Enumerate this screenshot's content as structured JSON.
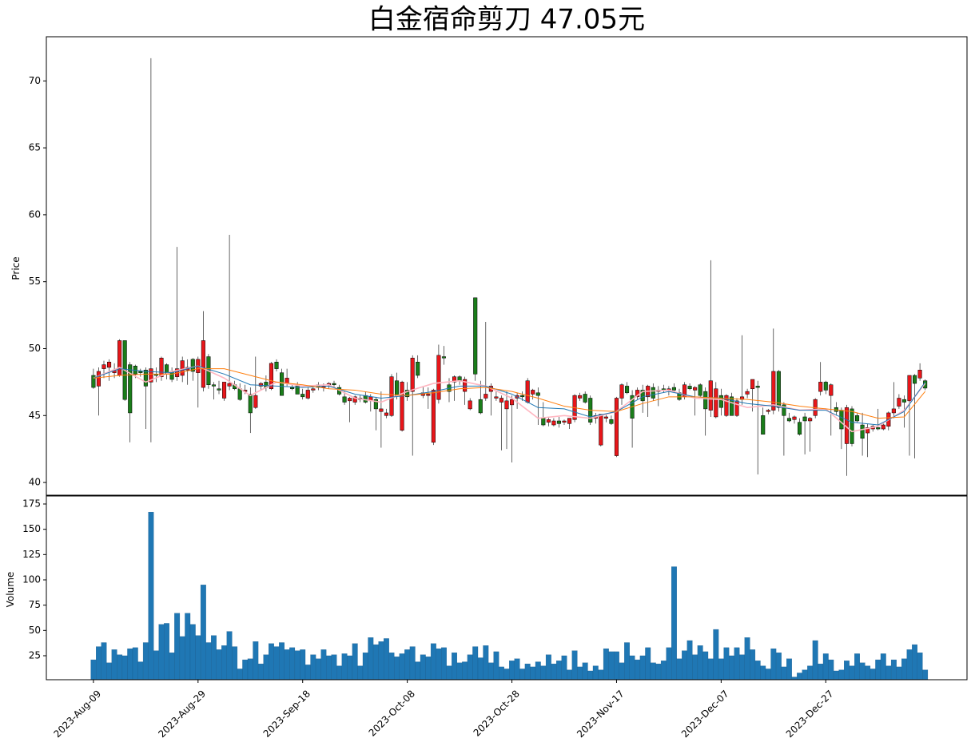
{
  "chart_data": {
    "type": "candlestick",
    "title": "白金宿命剪刀  47.05元",
    "price_label": "Price",
    "volume_label": "Volume",
    "up_color": "#e8161a",
    "down_color": "#1a7d1a",
    "volume_color": "#1f77b4",
    "x": [
      "2023-Aug-09",
      "2023-Aug-10",
      "2023-Aug-11",
      "2023-Aug-12",
      "2023-Aug-13",
      "2023-Aug-14",
      "2023-Aug-15",
      "2023-Aug-16",
      "2023-Aug-17",
      "2023-Aug-18",
      "2023-Aug-19",
      "2023-Aug-20",
      "2023-Aug-21",
      "2023-Aug-22",
      "2023-Aug-23",
      "2023-Aug-24",
      "2023-Aug-25",
      "2023-Aug-26",
      "2023-Aug-27",
      "2023-Aug-28",
      "2023-Aug-29",
      "2023-Aug-30",
      "2023-Aug-31",
      "2023-Sep-01",
      "2023-Sep-02",
      "2023-Sep-03",
      "2023-Sep-04",
      "2023-Sep-05",
      "2023-Sep-06",
      "2023-Sep-07",
      "2023-Sep-08",
      "2023-Sep-09",
      "2023-Sep-10",
      "2023-Sep-11",
      "2023-Sep-12",
      "2023-Sep-13",
      "2023-Sep-14",
      "2023-Sep-15",
      "2023-Sep-16",
      "2023-Sep-17",
      "2023-Sep-18",
      "2023-Sep-19",
      "2023-Sep-20",
      "2023-Sep-21",
      "2023-Sep-22",
      "2023-Sep-23",
      "2023-Sep-24",
      "2023-Sep-25",
      "2023-Sep-26",
      "2023-Sep-27",
      "2023-Sep-28",
      "2023-Sep-29",
      "2023-Sep-30",
      "2023-Oct-01",
      "2023-Oct-02",
      "2023-Oct-03",
      "2023-Oct-04",
      "2023-Oct-05",
      "2023-Oct-06",
      "2023-Oct-07",
      "2023-Oct-08",
      "2023-Oct-09",
      "2023-Oct-10",
      "2023-Oct-11",
      "2023-Oct-12",
      "2023-Oct-13",
      "2023-Oct-14",
      "2023-Oct-15",
      "2023-Oct-16",
      "2023-Oct-17",
      "2023-Oct-18",
      "2023-Oct-19",
      "2023-Oct-20",
      "2023-Oct-21",
      "2023-Oct-22",
      "2023-Oct-23",
      "2023-Oct-24",
      "2023-Oct-25",
      "2023-Oct-26",
      "2023-Oct-27",
      "2023-Oct-28",
      "2023-Oct-29",
      "2023-Oct-30",
      "2023-Oct-31",
      "2023-Nov-01",
      "2023-Nov-02",
      "2023-Nov-03",
      "2023-Nov-04",
      "2023-Nov-05",
      "2023-Nov-06",
      "2023-Nov-07",
      "2023-Nov-08",
      "2023-Nov-09",
      "2023-Nov-10",
      "2023-Nov-11",
      "2023-Nov-12",
      "2023-Nov-13",
      "2023-Nov-14",
      "2023-Nov-15",
      "2023-Nov-16",
      "2023-Nov-17",
      "2023-Nov-18",
      "2023-Nov-19",
      "2023-Nov-20",
      "2023-Nov-21",
      "2023-Nov-22",
      "2023-Nov-23",
      "2023-Nov-24",
      "2023-Nov-25",
      "2023-Nov-26",
      "2023-Nov-27",
      "2023-Nov-28",
      "2023-Nov-29",
      "2023-Nov-30",
      "2023-Dec-01",
      "2023-Dec-02",
      "2023-Dec-03",
      "2023-Dec-04",
      "2023-Dec-05",
      "2023-Dec-06",
      "2023-Dec-07",
      "2023-Dec-08",
      "2023-Dec-09",
      "2023-Dec-10",
      "2023-Dec-11",
      "2023-Dec-12",
      "2023-Dec-13",
      "2023-Dec-14",
      "2023-Dec-15",
      "2023-Dec-16",
      "2023-Dec-17",
      "2023-Dec-18",
      "2023-Dec-19",
      "2023-Dec-20",
      "2023-Dec-21",
      "2023-Dec-22",
      "2023-Dec-23",
      "2023-Dec-24",
      "2023-Dec-25",
      "2023-Dec-26",
      "2023-Dec-27",
      "2023-Dec-28",
      "2023-Dec-29",
      "2023-Dec-30",
      "2023-Dec-31",
      "2024-Jan-01",
      "2024-Jan-02",
      "2024-Jan-03",
      "2024-Jan-04",
      "2024-Jan-05",
      "2024-Jan-06",
      "2024-Jan-07",
      "2024-Jan-08",
      "2024-Jan-09",
      "2024-Jan-10",
      "2024-Jan-11",
      "2024-Jan-12",
      "2024-Jan-13",
      "2024-Jan-14",
      "2024-Jan-15"
    ],
    "ohlc": [
      [
        48.0,
        48.5,
        47.0,
        47.1
      ],
      [
        47.2,
        48.6,
        45.0,
        48.3
      ],
      [
        48.5,
        49.1,
        47.8,
        48.8
      ],
      [
        48.6,
        49.2,
        47.6,
        49.0
      ],
      [
        48.2,
        48.9,
        47.8,
        48.4
      ],
      [
        48.0,
        50.7,
        47.9,
        50.6
      ],
      [
        50.6,
        50.6,
        46.1,
        46.2
      ],
      [
        48.8,
        49.0,
        43.0,
        45.2
      ],
      [
        48.7,
        48.8,
        47.8,
        48.1
      ],
      [
        48.3,
        48.5,
        47.9,
        48.2
      ],
      [
        48.4,
        48.6,
        44.0,
        47.2
      ],
      [
        47.5,
        71.7,
        43.0,
        48.5
      ],
      [
        48.1,
        48.6,
        47.5,
        48.0
      ],
      [
        47.9,
        49.4,
        47.6,
        49.3
      ],
      [
        48.8,
        48.9,
        47.7,
        48.1
      ],
      [
        48.3,
        48.6,
        47.5,
        47.7
      ],
      [
        47.9,
        57.6,
        47.6,
        48.5
      ],
      [
        48.0,
        49.4,
        47.5,
        49.1
      ],
      [
        48.4,
        49.2,
        47.3,
        48.6
      ],
      [
        49.2,
        49.3,
        47.6,
        48.3
      ],
      [
        48.2,
        49.4,
        45.6,
        49.2
      ],
      [
        47.1,
        52.8,
        46.8,
        50.6
      ],
      [
        49.4,
        49.6,
        47.0,
        47.3
      ],
      [
        47.3,
        47.5,
        46.2,
        47.2
      ],
      [
        47.0,
        47.6,
        46.6,
        46.9
      ],
      [
        46.3,
        47.5,
        46.1,
        47.5
      ],
      [
        47.2,
        58.5,
        46.9,
        47.4
      ],
      [
        47.3,
        47.6,
        46.9,
        47.0
      ],
      [
        47.0,
        47.4,
        46.1,
        46.2
      ],
      [
        46.8,
        47.3,
        46.6,
        46.9
      ],
      [
        46.6,
        47.1,
        43.7,
        45.2
      ],
      [
        45.6,
        49.4,
        45.5,
        46.5
      ],
      [
        47.2,
        47.5,
        46.9,
        47.4
      ],
      [
        47.5,
        48.0,
        46.8,
        47.1
      ],
      [
        47.0,
        49.0,
        46.9,
        48.9
      ],
      [
        49.0,
        49.2,
        48.3,
        48.5
      ],
      [
        48.2,
        48.5,
        46.5,
        46.5
      ],
      [
        47.4,
        48.5,
        47.2,
        47.8
      ],
      [
        47.1,
        47.4,
        46.9,
        47.0
      ],
      [
        47.2,
        47.5,
        46.6,
        46.6
      ],
      [
        46.6,
        47.0,
        46.2,
        46.4
      ],
      [
        46.3,
        47.1,
        46.2,
        46.9
      ],
      [
        46.9,
        47.2,
        46.7,
        47.0
      ],
      [
        47.3,
        47.5,
        46.9,
        47.1
      ],
      [
        47.1,
        47.4,
        46.8,
        47.2
      ],
      [
        47.3,
        47.5,
        47.0,
        47.4
      ],
      [
        47.4,
        47.6,
        47.1,
        47.3
      ],
      [
        47.1,
        47.3,
        46.5,
        46.6
      ],
      [
        46.4,
        46.8,
        45.8,
        46.0
      ],
      [
        46.1,
        46.4,
        44.5,
        46.3
      ],
      [
        46.0,
        46.5,
        45.8,
        46.4
      ],
      [
        46.2,
        46.5,
        46.0,
        46.3
      ],
      [
        46.5,
        46.8,
        45.9,
        46.0
      ],
      [
        46.1,
        46.6,
        45.3,
        46.4
      ],
      [
        46.2,
        46.4,
        43.9,
        45.5
      ],
      [
        45.3,
        46.8,
        42.6,
        45.5
      ],
      [
        45.0,
        45.5,
        44.8,
        45.2
      ],
      [
        45.0,
        48.1,
        44.9,
        47.9
      ],
      [
        47.6,
        48.2,
        46.2,
        46.5
      ],
      [
        43.9,
        47.6,
        43.8,
        47.5
      ],
      [
        46.9,
        47.5,
        46.1,
        46.4
      ],
      [
        46.8,
        49.5,
        42.0,
        49.3
      ],
      [
        49.0,
        49.5,
        47.8,
        48.0
      ],
      [
        46.5,
        47.2,
        46.3,
        46.7
      ],
      [
        46.5,
        47.1,
        45.5,
        46.6
      ],
      [
        43.0,
        47.0,
        42.8,
        46.9
      ],
      [
        46.2,
        50.3,
        45.9,
        49.5
      ],
      [
        49.4,
        50.2,
        48.8,
        49.3
      ],
      [
        47.3,
        47.8,
        46.0,
        46.8
      ],
      [
        47.5,
        48.0,
        46.1,
        47.9
      ],
      [
        47.9,
        48.0,
        47.3,
        47.6
      ],
      [
        46.8,
        47.9,
        45.8,
        47.7
      ],
      [
        45.5,
        46.3,
        45.4,
        46.1
      ],
      [
        53.8,
        53.8,
        47.6,
        48.1
      ],
      [
        46.2,
        47.6,
        45.1,
        45.2
      ],
      [
        46.3,
        52.0,
        46.1,
        46.6
      ],
      [
        46.8,
        47.4,
        45.0,
        47.2
      ],
      [
        46.3,
        46.8,
        46.1,
        46.4
      ],
      [
        46.0,
        46.5,
        42.4,
        46.3
      ],
      [
        45.5,
        46.8,
        42.5,
        46.1
      ],
      [
        45.8,
        46.5,
        41.5,
        46.2
      ],
      [
        46.3,
        46.7,
        45.5,
        46.5
      ],
      [
        46.5,
        46.8,
        46.1,
        46.4
      ],
      [
        46.0,
        47.8,
        45.9,
        47.6
      ],
      [
        46.6,
        47.0,
        46.2,
        46.9
      ],
      [
        46.7,
        47.1,
        44.3,
        46.5
      ],
      [
        44.8,
        46.0,
        44.2,
        44.3
      ],
      [
        44.5,
        44.9,
        44.2,
        44.7
      ],
      [
        44.3,
        44.8,
        44.2,
        44.6
      ],
      [
        44.6,
        44.9,
        44.1,
        44.4
      ],
      [
        44.5,
        44.7,
        44.3,
        44.6
      ],
      [
        44.4,
        44.8,
        44.0,
        44.8
      ],
      [
        44.7,
        46.6,
        44.5,
        46.5
      ],
      [
        46.3,
        46.7,
        46.1,
        46.5
      ],
      [
        46.6,
        46.8,
        45.9,
        46.0
      ],
      [
        46.3,
        46.5,
        44.3,
        44.5
      ],
      [
        44.8,
        45.2,
        44.4,
        45.0
      ],
      [
        42.8,
        45.0,
        42.7,
        45.1
      ],
      [
        44.8,
        45.1,
        44.5,
        44.9
      ],
      [
        44.7,
        45.0,
        44.3,
        44.4
      ],
      [
        42.0,
        46.4,
        41.9,
        46.3
      ],
      [
        46.3,
        47.4,
        45.8,
        47.3
      ],
      [
        47.2,
        47.5,
        46.6,
        46.7
      ],
      [
        46.5,
        46.9,
        42.6,
        44.8
      ],
      [
        46.4,
        47.1,
        46.2,
        46.9
      ],
      [
        46.9,
        47.3,
        45.2,
        46.1
      ],
      [
        46.4,
        47.3,
        44.9,
        47.2
      ],
      [
        47.1,
        47.4,
        46.1,
        46.3
      ],
      [
        46.8,
        47.2,
        45.7,
        46.9
      ],
      [
        47.0,
        47.3,
        46.7,
        46.9
      ],
      [
        46.9,
        47.2,
        46.5,
        47.0
      ],
      [
        47.1,
        47.4,
        46.8,
        46.9
      ],
      [
        46.7,
        47.0,
        46.1,
        46.2
      ],
      [
        46.4,
        47.5,
        46.2,
        47.3
      ],
      [
        47.2,
        47.4,
        46.9,
        47.0
      ],
      [
        46.9,
        47.2,
        45.0,
        47.1
      ],
      [
        47.3,
        47.4,
        46.4,
        46.5
      ],
      [
        46.8,
        47.1,
        43.5,
        45.5
      ],
      [
        45.4,
        56.6,
        44.9,
        47.6
      ],
      [
        44.9,
        47.5,
        44.8,
        47.0
      ],
      [
        46.5,
        47.0,
        45.0,
        45.6
      ],
      [
        45.0,
        46.6,
        44.9,
        46.5
      ],
      [
        46.4,
        46.7,
        45.0,
        45.0
      ],
      [
        45.0,
        46.3,
        44.9,
        46.1
      ],
      [
        46.2,
        51.0,
        45.8,
        46.4
      ],
      [
        46.6,
        47.0,
        46.3,
        46.8
      ],
      [
        47.0,
        47.6,
        45.3,
        47.7
      ],
      [
        47.2,
        47.6,
        40.6,
        47.1
      ],
      [
        45.0,
        45.6,
        43.6,
        43.6
      ],
      [
        45.3,
        45.5,
        45.1,
        45.4
      ],
      [
        45.4,
        51.5,
        45.1,
        48.3
      ],
      [
        48.3,
        48.4,
        45.3,
        45.6
      ],
      [
        45.8,
        46.0,
        42.0,
        45.0
      ],
      [
        44.8,
        45.2,
        44.5,
        44.6
      ],
      [
        44.7,
        45.0,
        44.4,
        44.9
      ],
      [
        44.5,
        44.8,
        43.5,
        43.6
      ],
      [
        44.9,
        45.2,
        42.1,
        44.6
      ],
      [
        44.6,
        44.9,
        42.3,
        44.8
      ],
      [
        45.0,
        46.3,
        44.8,
        46.2
      ],
      [
        46.8,
        49.0,
        46.5,
        47.5
      ],
      [
        47.5,
        47.6,
        46.6,
        46.9
      ],
      [
        46.5,
        47.4,
        43.5,
        47.3
      ],
      [
        45.6,
        46.0,
        45.0,
        45.3
      ],
      [
        45.4,
        45.6,
        42.5,
        44.0
      ],
      [
        42.9,
        45.8,
        40.5,
        45.6
      ],
      [
        45.5,
        45.7,
        42.7,
        42.9
      ],
      [
        45.0,
        45.2,
        44.5,
        44.6
      ],
      [
        44.3,
        45.2,
        42.0,
        43.3
      ],
      [
        43.7,
        44.4,
        41.9,
        44.1
      ],
      [
        44.0,
        44.3,
        43.8,
        44.2
      ],
      [
        44.1,
        45.5,
        43.9,
        44.0
      ],
      [
        44.0,
        44.4,
        43.9,
        44.3
      ],
      [
        44.2,
        45.3,
        43.9,
        45.2
      ],
      [
        45.2,
        47.5,
        44.8,
        45.5
      ],
      [
        45.7,
        46.6,
        45.5,
        46.3
      ],
      [
        46.2,
        46.5,
        44.1,
        46.0
      ],
      [
        46.1,
        48.0,
        42.0,
        48.0
      ],
      [
        48.0,
        48.1,
        41.8,
        47.4
      ],
      [
        47.8,
        48.9,
        47.6,
        48.4
      ],
      [
        47.6,
        47.7,
        46.9,
        47.05
      ]
    ],
    "volume": [
      21,
      34,
      38,
      18,
      31,
      26,
      25,
      32,
      33,
      19,
      38,
      167,
      30,
      56,
      57,
      28,
      67,
      44,
      67,
      56,
      45,
      95,
      38,
      45,
      31,
      35,
      49,
      34,
      12,
      21,
      22,
      39,
      17,
      26,
      37,
      34,
      38,
      31,
      33,
      30,
      31,
      16,
      26,
      22,
      31,
      25,
      26,
      15,
      27,
      25,
      37,
      15,
      28,
      43,
      36,
      39,
      42,
      28,
      24,
      27,
      31,
      34,
      19,
      26,
      24,
      37,
      32,
      33,
      15,
      28,
      18,
      19,
      26,
      34,
      23,
      35,
      18,
      29,
      14,
      12,
      20,
      22,
      12,
      17,
      14,
      19,
      15,
      26,
      17,
      20,
      25,
      11,
      30,
      14,
      18,
      10,
      15,
      11,
      32,
      29,
      29,
      18,
      38,
      25,
      21,
      25,
      33,
      18,
      17,
      20,
      33,
      113,
      22,
      30,
      40,
      26,
      35,
      29,
      22,
      51,
      22,
      33,
      25,
      33,
      26,
      43,
      31,
      20,
      15,
      12,
      32,
      28,
      14,
      22,
      4,
      8,
      11,
      15,
      40,
      17,
      27,
      21,
      10,
      11,
      20,
      15,
      27,
      18,
      15,
      12,
      21,
      27,
      15,
      21,
      14,
      22,
      31,
      36,
      28,
      11
    ],
    "ma_x": [
      "2023-Aug-09",
      "2023-Aug-14",
      "2023-Aug-19",
      "2023-Aug-24",
      "2023-Aug-29",
      "2023-Sep-03",
      "2023-Sep-08",
      "2023-Sep-13",
      "2023-Sep-18",
      "2023-Sep-23",
      "2023-Sep-28",
      "2023-Oct-03",
      "2023-Oct-08",
      "2023-Oct-13",
      "2023-Oct-18",
      "2023-Oct-23",
      "2023-Oct-28",
      "2023-Nov-02",
      "2023-Nov-07",
      "2023-Nov-12",
      "2023-Nov-17",
      "2023-Nov-22",
      "2023-Nov-27",
      "2023-Dec-02",
      "2023-Dec-07",
      "2023-Dec-12",
      "2023-Dec-17",
      "2023-Dec-22",
      "2023-Dec-27",
      "2024-Jan-01",
      "2024-Jan-06",
      "2024-Jan-11",
      "2024-Jan-15"
    ],
    "ma_lines": [
      {
        "color": "#ffb6c1",
        "width": 1.6,
        "values": [
          47.8,
          48.6,
          47.5,
          48.3,
          48.7,
          47.8,
          46.5,
          47.5,
          47.2,
          47.3,
          46.3,
          46.0,
          46.8,
          47.4,
          47.6,
          47.2,
          46.3,
          44.8,
          45.0,
          44.8,
          45.3,
          46.8,
          46.9,
          46.3,
          46.2,
          45.6,
          45.8,
          45.4,
          45.5,
          43.8,
          44.2,
          45.4,
          47.4
        ]
      },
      {
        "color": "#1f77b4",
        "width": 1,
        "values": [
          47.8,
          48.5,
          48.3,
          48.2,
          48.7,
          48.1,
          47.3,
          47.2,
          47.1,
          47.2,
          46.6,
          46.3,
          46.5,
          46.8,
          47.2,
          47.2,
          46.6,
          45.6,
          45.5,
          44.9,
          45.3,
          46.4,
          46.8,
          46.4,
          46.3,
          45.9,
          45.7,
          45.4,
          45.4,
          44.5,
          44.3,
          45.3,
          47.5
        ]
      },
      {
        "color": "#ff7f0e",
        "width": 1,
        "values": [
          47.8,
          48.0,
          48.1,
          48.1,
          48.5,
          48.5,
          48.0,
          47.5,
          47.3,
          47.0,
          46.9,
          46.6,
          46.5,
          46.7,
          47.0,
          47.1,
          46.8,
          46.3,
          45.7,
          45.4,
          45.3,
          45.9,
          46.4,
          46.4,
          46.3,
          46.2,
          46.0,
          45.7,
          45.5,
          45.3,
          44.8,
          44.9,
          46.8
        ]
      }
    ],
    "xlim": [
      "2023-Jul-31",
      "2024-Jan-23"
    ],
    "xticks": [
      "2023-Aug-09",
      "2023-Aug-29",
      "2023-Sep-18",
      "2023-Oct-08",
      "2023-Oct-28",
      "2023-Nov-17",
      "2023-Dec-07",
      "2023-Dec-27"
    ],
    "ylim": [
      39.05,
      73.3
    ],
    "yticks": [
      40,
      45,
      50,
      55,
      60,
      65,
      70
    ],
    "vol_ylim": [
      1.3,
      182.9
    ],
    "vol_yticks": [
      25,
      50,
      75,
      100,
      125,
      150,
      175
    ]
  }
}
